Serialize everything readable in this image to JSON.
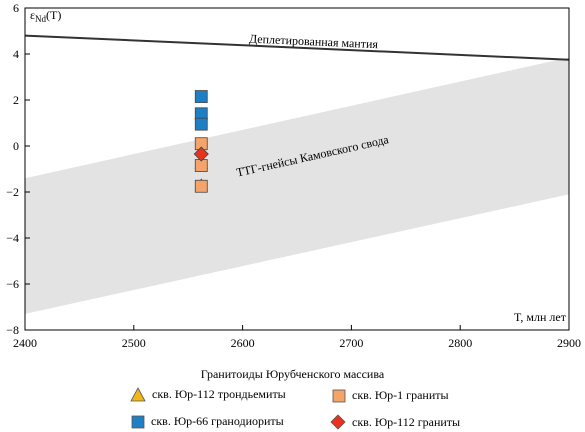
{
  "chart_data": {
    "type": "scatter",
    "xlim": [
      2400,
      2900
    ],
    "ylim": [
      -8,
      6
    ],
    "x_ticks": [
      "2400",
      "2500",
      "2600",
      "2700",
      "2800",
      "2900"
    ],
    "y_ticks": [
      "6",
      "4",
      "2",
      "0",
      "−2",
      "−4",
      "−6",
      "−8"
    ],
    "y_tick_values": [
      6,
      4,
      2,
      0,
      -2,
      -4,
      -6,
      -8
    ],
    "y_label_main": "ε",
    "y_label_sub": "Nd",
    "y_label_tail": "(T)",
    "x_label": "T, млн лет",
    "grid": false,
    "depleted_mantle": {
      "label": "Деплетированная мантия",
      "points": [
        [
          2400,
          4.8
        ],
        [
          2900,
          3.75
        ]
      ],
      "color": "#333333"
    },
    "ttg_band": {
      "label": "ТТГ-гнейсы Камовского свода",
      "upper": [
        [
          2400,
          -1.4
        ],
        [
          2900,
          3.85
        ]
      ],
      "lower": [
        [
          2400,
          -7.3
        ],
        [
          2900,
          -2.1
        ]
      ],
      "color": "#e3e3e3"
    },
    "series": [
      {
        "name": "скв. Юр-112 трондьемиты",
        "marker": "triangle",
        "color": "#f2b619",
        "points": [
          [
            2562,
            -0.75
          ],
          [
            2562,
            -1.7
          ]
        ]
      },
      {
        "name": "скв. Юр-1 граниты",
        "marker": "square",
        "color": "#f4a46a",
        "points": [
          [
            2562,
            0.1
          ],
          [
            2562,
            -0.85
          ],
          [
            2562,
            -1.75
          ]
        ]
      },
      {
        "name": "скв. Юр-66 гранодиориты",
        "marker": "square",
        "color": "#1f7fc4",
        "points": [
          [
            2562,
            2.15
          ],
          [
            2562,
            1.4
          ],
          [
            2562,
            0.95
          ]
        ]
      },
      {
        "name": "скв. Юр-112 граниты",
        "marker": "diamond",
        "color": "#e8321e",
        "points": [
          [
            2562,
            -0.35
          ]
        ]
      }
    ],
    "legend": {
      "title": "Гранитоиды Юрубченского массива",
      "placement": "bottom"
    }
  }
}
